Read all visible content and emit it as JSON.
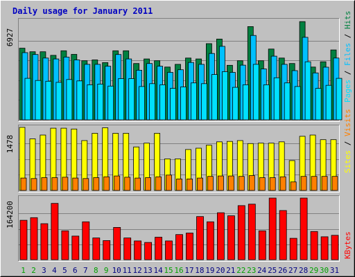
{
  "title": "Daily usage for January 2011",
  "colors": {
    "background": "#C0C0C0",
    "title": "#0000C0",
    "hits": "#008040",
    "files": "#00C0FF",
    "pages": "#00E0FF",
    "visits": "#FF8000",
    "sites": "#FFFF00",
    "kbytes": "#FF0000",
    "weekday_label": "#000080",
    "weekend_label": "#00A000"
  },
  "chart_data": [
    {
      "type": "bar",
      "panel": "hits-files-pages",
      "y_max_label": "6927",
      "ylim": [
        0,
        6927
      ],
      "grid": true,
      "side_label": [
        "Pages",
        "Files",
        "Hits"
      ],
      "categories": [
        "1",
        "2",
        "3",
        "4",
        "5",
        "6",
        "7",
        "8",
        "9",
        "10",
        "11",
        "12",
        "13",
        "14",
        "15",
        "16",
        "17",
        "18",
        "19",
        "20",
        "21",
        "22",
        "23",
        "24",
        "25",
        "26",
        "27",
        "28",
        "29",
        "30",
        "31"
      ],
      "series": [
        {
          "name": "Hits",
          "values": [
            5010,
            4760,
            4760,
            4510,
            4830,
            4580,
            4130,
            4190,
            4000,
            4830,
            4830,
            3940,
            4260,
            4130,
            3690,
            3880,
            4320,
            4260,
            5330,
            5650,
            3810,
            4130,
            6520,
            4130,
            4950,
            4320,
            3940,
            6870,
            3690,
            4060,
            4890
          ]
        },
        {
          "name": "Files",
          "values": [
            4700,
            4570,
            4320,
            4260,
            4390,
            4190,
            3880,
            3880,
            3750,
            4570,
            4260,
            3470,
            3940,
            3750,
            3320,
            3500,
            4010,
            3880,
            4640,
            5140,
            3320,
            3820,
            5900,
            3560,
            4450,
            3880,
            3440,
            5770,
            3280,
            3680,
            4320
          ]
        },
        {
          "name": "Pages",
          "values": [
            2900,
            2750,
            2700,
            2620,
            2820,
            2720,
            2450,
            2500,
            2360,
            2880,
            2880,
            2330,
            2530,
            2450,
            2200,
            2300,
            2580,
            2530,
            3170,
            3360,
            2270,
            2450,
            3880,
            2450,
            2940,
            2580,
            2330,
            4060,
            2200,
            2410,
            2900
          ]
        }
      ]
    },
    {
      "type": "bar",
      "panel": "sites-visits",
      "y_max_label": "1478",
      "ylim": [
        0,
        1478
      ],
      "grid": true,
      "side_label": [
        "Sites",
        "Visits"
      ],
      "categories": [
        "1",
        "2",
        "3",
        "4",
        "5",
        "6",
        "7",
        "8",
        "9",
        "10",
        "11",
        "12",
        "13",
        "14",
        "15",
        "16",
        "17",
        "18",
        "19",
        "20",
        "21",
        "22",
        "23",
        "24",
        "25",
        "26",
        "27",
        "28",
        "29",
        "30",
        "31"
      ],
      "series": [
        {
          "name": "Visits",
          "values": [
            290,
            280,
            300,
            300,
            310,
            290,
            280,
            300,
            320,
            340,
            310,
            290,
            300,
            320,
            360,
            270,
            270,
            290,
            330,
            340,
            340,
            330,
            350,
            300,
            300,
            320,
            200,
            330,
            330,
            330,
            330
          ]
        },
        {
          "name": "Sites",
          "values": [
            1480,
            1210,
            1300,
            1460,
            1460,
            1440,
            1170,
            1340,
            1470,
            1340,
            1340,
            1020,
            1110,
            1340,
            740,
            740,
            960,
            990,
            1060,
            1140,
            1150,
            1170,
            1100,
            1110,
            1110,
            1140,
            700,
            1270,
            1300,
            1190,
            1190
          ]
        }
      ]
    },
    {
      "type": "bar",
      "panel": "kbytes",
      "y_max_label": "164200",
      "ylim": [
        0,
        164200
      ],
      "grid": true,
      "side_label": [
        "KBytes"
      ],
      "categories": [
        "1",
        "2",
        "3",
        "4",
        "5",
        "6",
        "7",
        "8",
        "9",
        "10",
        "11",
        "12",
        "13",
        "14",
        "15",
        "16",
        "17",
        "18",
        "19",
        "20",
        "21",
        "22",
        "23",
        "24",
        "25",
        "26",
        "27",
        "28",
        "29",
        "30",
        "31"
      ],
      "series": [
        {
          "name": "KBytes",
          "values": [
            105000,
            112000,
            96000,
            150000,
            77000,
            63000,
            101000,
            58000,
            51000,
            86000,
            58000,
            50000,
            46000,
            60000,
            50000,
            67000,
            71000,
            115000,
            101000,
            125000,
            117000,
            144000,
            148000,
            77000,
            164200,
            131000,
            57000,
            164200,
            75000,
            61000,
            65000
          ]
        }
      ]
    }
  ],
  "days": [
    "1",
    "2",
    "3",
    "4",
    "5",
    "6",
    "7",
    "8",
    "9",
    "10",
    "11",
    "12",
    "13",
    "14",
    "15",
    "16",
    "17",
    "18",
    "19",
    "20",
    "21",
    "22",
    "23",
    "24",
    "25",
    "26",
    "27",
    "28",
    "29",
    "30",
    "31"
  ],
  "weekend_days": [
    1,
    2,
    8,
    9,
    15,
    16,
    22,
    23,
    29,
    30
  ]
}
